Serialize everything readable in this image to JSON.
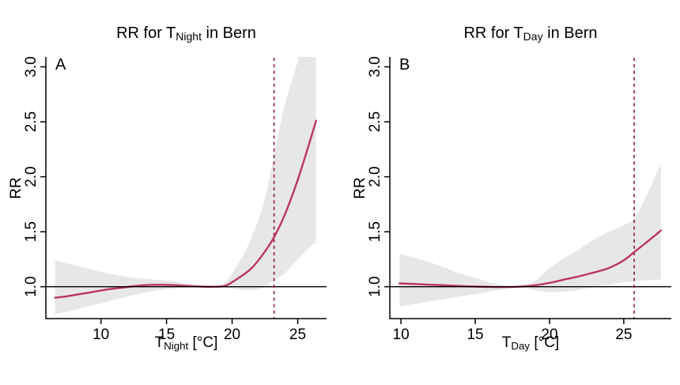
{
  "figure": {
    "background": "#ffffff",
    "text_color": "#000000"
  },
  "colors": {
    "curve": "#bb3560",
    "ci_band": "#e7e7e7",
    "mmt_line": "#9c2a58",
    "axis": "#000000",
    "reference_line": "#000000"
  },
  "chart_data": [
    {
      "type": "line",
      "panel_label": "A",
      "title": {
        "pre": "RR for T",
        "sub": "Night",
        "post": " in Bern"
      },
      "xlabel": {
        "pre": "T",
        "sub": "Night",
        "post": " [°C]"
      },
      "ylabel": "RR",
      "xlim": [
        5.8,
        27.2
      ],
      "ylim": [
        0.71,
        3.09
      ],
      "xticks": [
        10,
        15,
        20,
        25
      ],
      "yticks": [
        1.0,
        1.5,
        2.0,
        2.5,
        3.0
      ],
      "ytick_labels": [
        "1.0",
        "1.5",
        "2.0",
        "2.5",
        "3.0"
      ],
      "grid": false,
      "legend": "none",
      "reference_rr": 1.0,
      "mmt_x": 23.2,
      "x": [
        6.5,
        7.5,
        8.5,
        9.5,
        10.5,
        11.5,
        12.5,
        13.5,
        14.5,
        15.5,
        16.5,
        17.5,
        18.5,
        19.5,
        20.5,
        21.5,
        22.5,
        23.2,
        24,
        25,
        26,
        26.4
      ],
      "series": [
        {
          "name": "RR curve",
          "values": [
            0.9,
            0.915,
            0.935,
            0.955,
            0.975,
            0.99,
            1.005,
            1.015,
            1.018,
            1.015,
            1.008,
            1.002,
            1.0,
            1.01,
            1.08,
            1.17,
            1.32,
            1.45,
            1.65,
            1.97,
            2.35,
            2.51
          ]
        },
        {
          "name": "95% CI lower",
          "values": [
            0.75,
            0.775,
            0.805,
            0.835,
            0.865,
            0.895,
            0.925,
            0.95,
            0.97,
            0.985,
            0.99,
            0.995,
            0.997,
            0.99,
            0.975,
            0.97,
            1.0,
            1.06,
            1.12,
            1.25,
            1.37,
            1.4
          ]
        },
        {
          "name": "95% CI upper",
          "values": [
            1.24,
            1.21,
            1.18,
            1.15,
            1.12,
            1.1,
            1.08,
            1.07,
            1.06,
            1.05,
            1.03,
            1.01,
            1.003,
            1.04,
            1.22,
            1.45,
            1.8,
            2.2,
            2.65,
            3.05,
            3.5,
            3.7
          ]
        }
      ]
    },
    {
      "type": "line",
      "panel_label": "B",
      "title": {
        "pre": "RR for T",
        "sub": "Day",
        "post": " in Bern"
      },
      "xlabel": {
        "pre": "T",
        "sub": "Day",
        "post": " [°C]"
      },
      "ylabel": "RR",
      "xlim": [
        9.25,
        28.2
      ],
      "ylim": [
        0.71,
        3.09
      ],
      "xticks": [
        10,
        15,
        20,
        25
      ],
      "yticks": [
        1.0,
        1.5,
        2.0,
        2.5,
        3.0
      ],
      "ytick_labels": [
        "1.0",
        "1.5",
        "2.0",
        "2.5",
        "3.0"
      ],
      "grid": false,
      "legend": "none",
      "reference_rr": 1.0,
      "mmt_x": 25.7,
      "x": [
        9.9,
        11,
        12,
        13,
        14,
        15,
        16,
        17,
        17.9,
        19,
        20,
        21,
        22,
        23,
        24,
        25,
        25.7,
        26.5,
        27.5
      ],
      "series": [
        {
          "name": "RR curve",
          "values": [
            1.03,
            1.024,
            1.018,
            1.012,
            1.006,
            1.001,
            0.998,
            0.997,
            1.0,
            1.012,
            1.035,
            1.065,
            1.095,
            1.13,
            1.17,
            1.24,
            1.315,
            1.4,
            1.51
          ]
        },
        {
          "name": "95% CI lower",
          "values": [
            0.82,
            0.845,
            0.868,
            0.89,
            0.912,
            0.932,
            0.955,
            0.98,
            0.998,
            0.97,
            0.952,
            0.955,
            0.97,
            1.0,
            1.02,
            1.04,
            1.05,
            1.06,
            1.065
          ]
        },
        {
          "name": "95% CI upper",
          "values": [
            1.3,
            1.26,
            1.22,
            1.17,
            1.12,
            1.08,
            1.04,
            1.01,
            1.002,
            1.05,
            1.17,
            1.26,
            1.34,
            1.43,
            1.5,
            1.56,
            1.62,
            1.82,
            2.12
          ]
        }
      ]
    }
  ]
}
